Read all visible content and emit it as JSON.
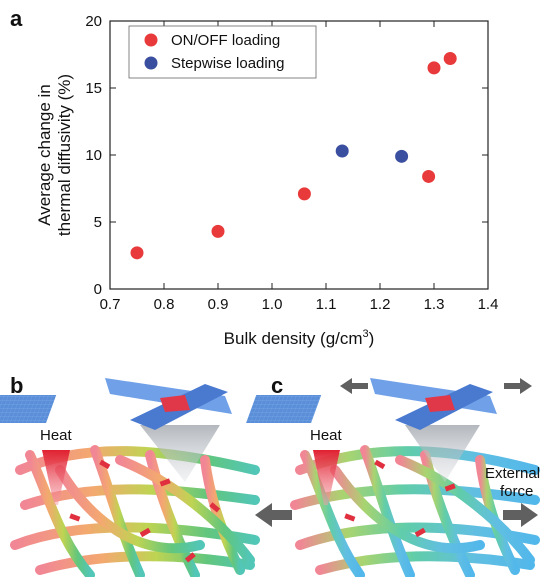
{
  "panels": {
    "a": "a",
    "b": "b",
    "c": "c"
  },
  "chart_data": {
    "type": "scatter",
    "xlabel": "Bulk density (g/cm",
    "xlabel_sup": "3",
    "xlabel_end": ")",
    "ylabel_line1": "Average change in",
    "ylabel_line2": "thermal diffusivity (%)",
    "xlim": [
      0.7,
      1.4
    ],
    "ylim": [
      0,
      20
    ],
    "xticks": [
      0.7,
      0.8,
      0.9,
      1.0,
      1.1,
      1.2,
      1.3,
      1.4
    ],
    "xtick_labels": [
      "0.7",
      "0.8",
      "0.9",
      "1.0",
      "1.1",
      "1.2",
      "1.3",
      "1.4"
    ],
    "yticks": [
      0,
      5,
      10,
      15,
      20
    ],
    "ytick_labels": [
      "0",
      "5",
      "10",
      "15",
      "20"
    ],
    "grid": false,
    "legend_position": "top-left",
    "series": [
      {
        "name": "ON/OFF loading",
        "color": "#e83a3a",
        "points": [
          [
            0.75,
            2.7
          ],
          [
            0.9,
            4.3
          ],
          [
            1.06,
            7.1
          ],
          [
            1.29,
            8.4
          ],
          [
            1.3,
            16.5
          ],
          [
            1.33,
            17.2
          ]
        ]
      },
      {
        "name": "Stepwise loading",
        "color": "#3a4fa0",
        "points": [
          [
            1.13,
            10.3
          ],
          [
            1.24,
            9.9
          ]
        ]
      }
    ]
  },
  "illustration": {
    "heat_b": "Heat",
    "heat_c": "Heat",
    "external_line1": "External",
    "external_line2": "force"
  }
}
